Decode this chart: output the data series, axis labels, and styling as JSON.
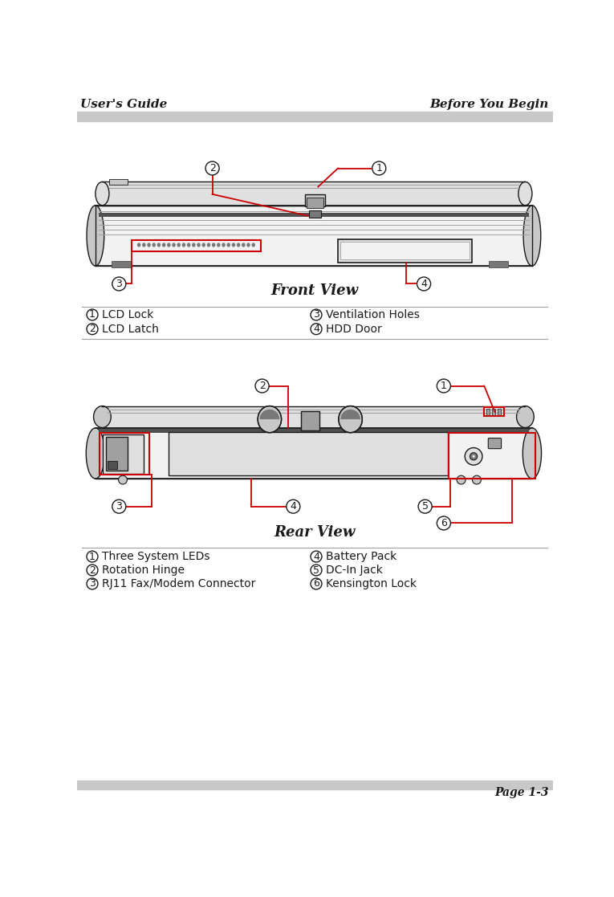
{
  "header_left": "User's Guide",
  "header_right": "Before You Begin",
  "footer_text": "Page 1-3",
  "header_bar_color": "#c8c8c8",
  "footer_bar_color": "#c8c8c8",
  "front_view_title": "Front View",
  "rear_view_title": "Rear View",
  "front_labels": [
    {
      "num": "1",
      "text": "LCD Lock",
      "col": "left"
    },
    {
      "num": "2",
      "text": "LCD Latch",
      "col": "left"
    },
    {
      "num": "3",
      "text": "Ventilation Holes",
      "col": "right"
    },
    {
      "num": "4",
      "text": "HDD Door",
      "col": "right"
    }
  ],
  "rear_labels": [
    {
      "num": "1",
      "text": "Three System LEDs",
      "col": "left"
    },
    {
      "num": "2",
      "text": "Rotation Hinge",
      "col": "left"
    },
    {
      "num": "3",
      "text": "RJ11 Fax/Modem Connector",
      "col": "left"
    },
    {
      "num": "4",
      "text": "Battery Pack",
      "col": "right"
    },
    {
      "num": "5",
      "text": "DC-In Jack",
      "col": "right"
    },
    {
      "num": "6",
      "text": "Kensington Lock",
      "col": "right"
    }
  ],
  "red": "#cc0000",
  "lc": "#1a1a1a",
  "bg": "#ffffff",
  "gray1": "#f2f2f2",
  "gray2": "#e0e0e0",
  "gray3": "#c8c8c8",
  "gray4": "#a0a0a0",
  "gray5": "#787878",
  "gray6": "#505050"
}
